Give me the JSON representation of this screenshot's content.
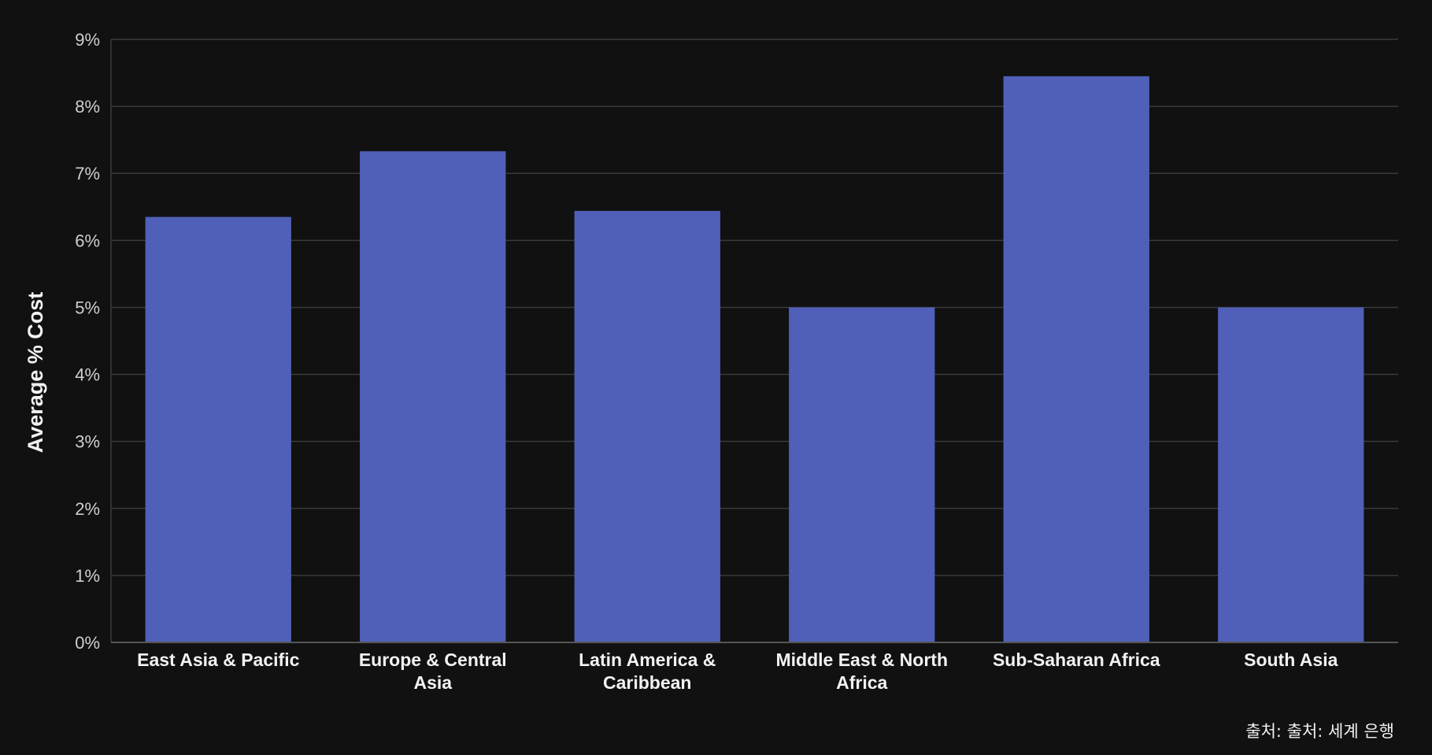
{
  "chart_data": {
    "type": "bar",
    "categories": [
      "East Asia & Pacific",
      "Europe & Central Asia",
      "Latin America & Caribbean",
      "Middle East & North Africa",
      "Sub-Saharan Africa",
      "South Asia"
    ],
    "category_lines": [
      [
        "East Asia & Pacific"
      ],
      [
        "Europe & Central",
        "Asia"
      ],
      [
        "Latin America &",
        "Caribbean"
      ],
      [
        "Middle East & North",
        "Africa"
      ],
      [
        "Sub-Saharan Africa"
      ],
      [
        "South Asia"
      ]
    ],
    "values": [
      6.35,
      7.33,
      6.44,
      5.0,
      8.45,
      5.0
    ],
    "ylabel": "Average % Cost",
    "ylim": [
      0,
      9
    ],
    "yticks": [
      0,
      1,
      2,
      3,
      4,
      5,
      6,
      7,
      8,
      9
    ],
    "ytick_suffix": "%",
    "grid": true,
    "legend": "none",
    "colors": {
      "bar": "#5060b8",
      "background": "#111111",
      "grid": "#3a3a3a"
    }
  },
  "source_note": "출처: 출처: 세계 은행"
}
